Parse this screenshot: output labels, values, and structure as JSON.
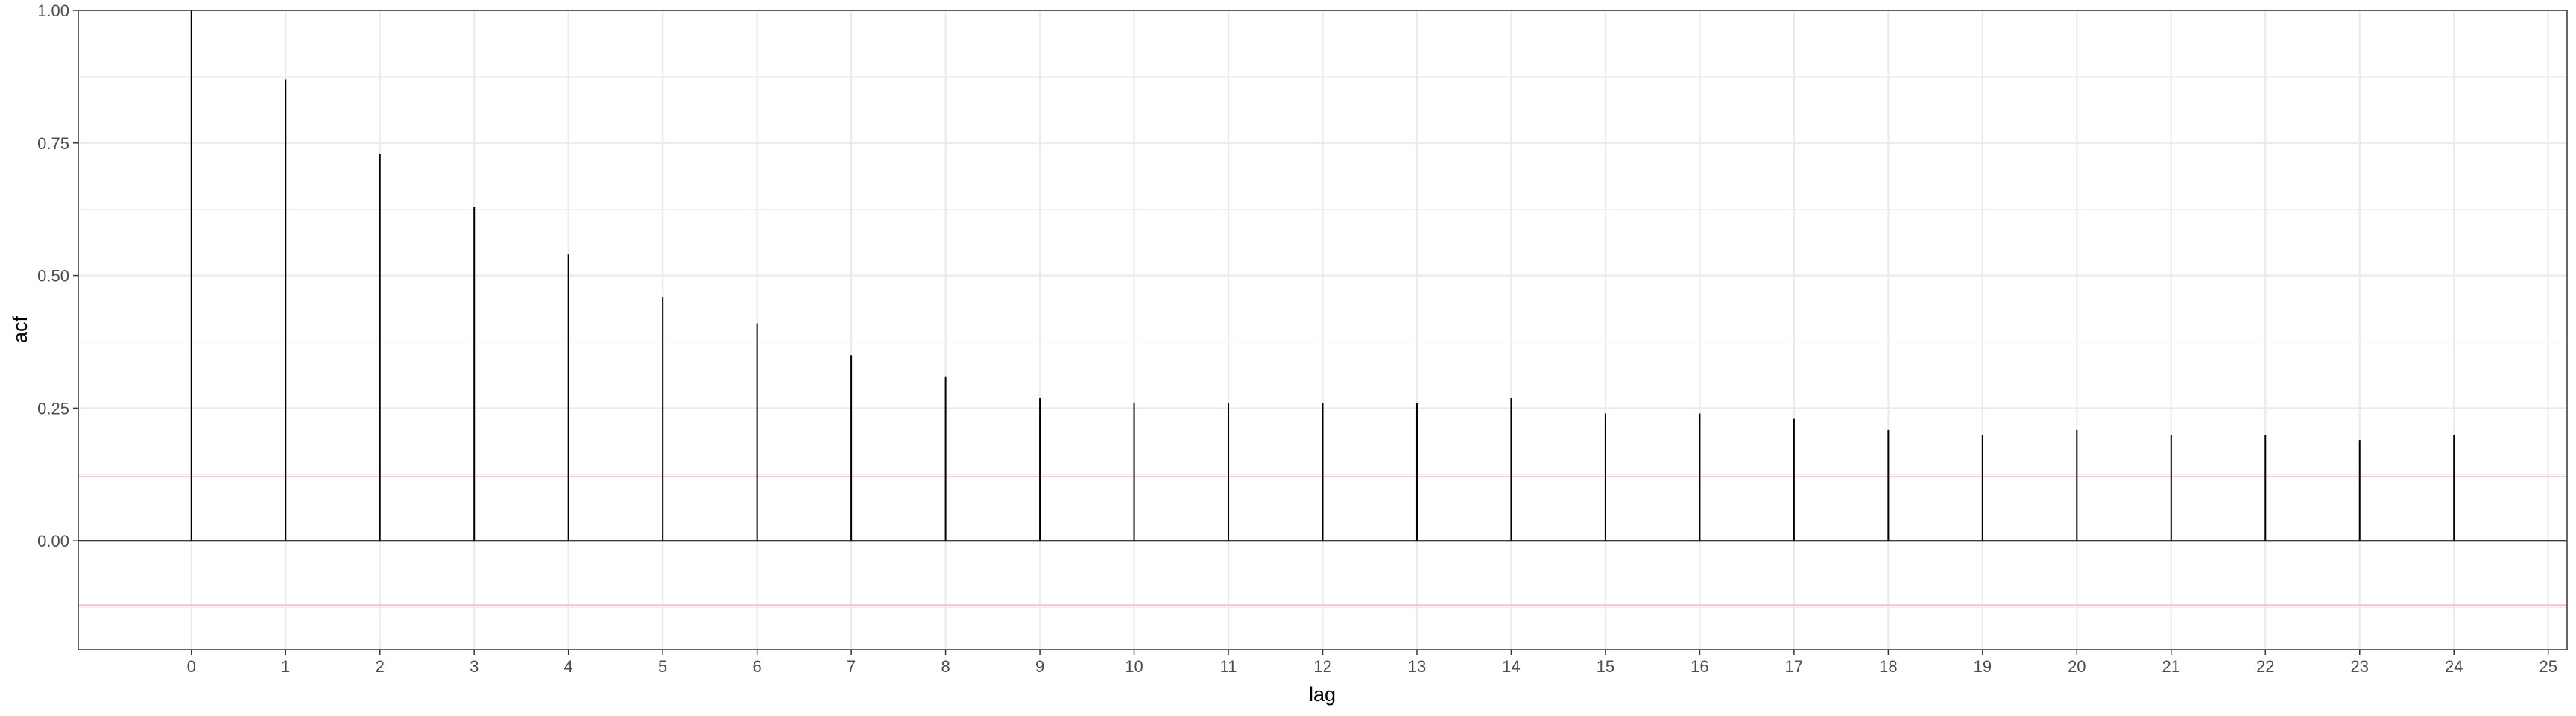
{
  "chart_data": {
    "type": "bar",
    "xlabel": "lag",
    "ylabel": "acf",
    "x": [
      0,
      1,
      2,
      3,
      4,
      5,
      6,
      7,
      8,
      9,
      10,
      11,
      12,
      13,
      14,
      15,
      16,
      17,
      18,
      19,
      20,
      21,
      22,
      23,
      24
    ],
    "values": [
      1.0,
      0.87,
      0.73,
      0.63,
      0.54,
      0.46,
      0.41,
      0.35,
      0.31,
      0.27,
      0.26,
      0.26,
      0.26,
      0.26,
      0.27,
      0.24,
      0.24,
      0.23,
      0.21,
      0.2,
      0.21,
      0.2,
      0.2,
      0.19,
      0.2
    ],
    "x_ticks": [
      "0",
      "1",
      "2",
      "3",
      "4",
      "5",
      "6",
      "7",
      "8",
      "9",
      "10",
      "11",
      "12",
      "13",
      "14",
      "15",
      "16",
      "17",
      "18",
      "19",
      "20",
      "21",
      "22",
      "23",
      "24",
      "25"
    ],
    "y_ticks": [
      "0.00",
      "0.25",
      "0.50",
      "0.75",
      "1.00"
    ],
    "xlim": [
      -1.2,
      25.2
    ],
    "ylim": [
      -0.205,
      1.0
    ],
    "confidence_bounds": [
      0.121,
      -0.121
    ],
    "grid": true,
    "colors": {
      "bar": "#000000",
      "confidence": "#ffc0cb",
      "grid": "#ebebeb",
      "zero_line": "#000000"
    }
  }
}
